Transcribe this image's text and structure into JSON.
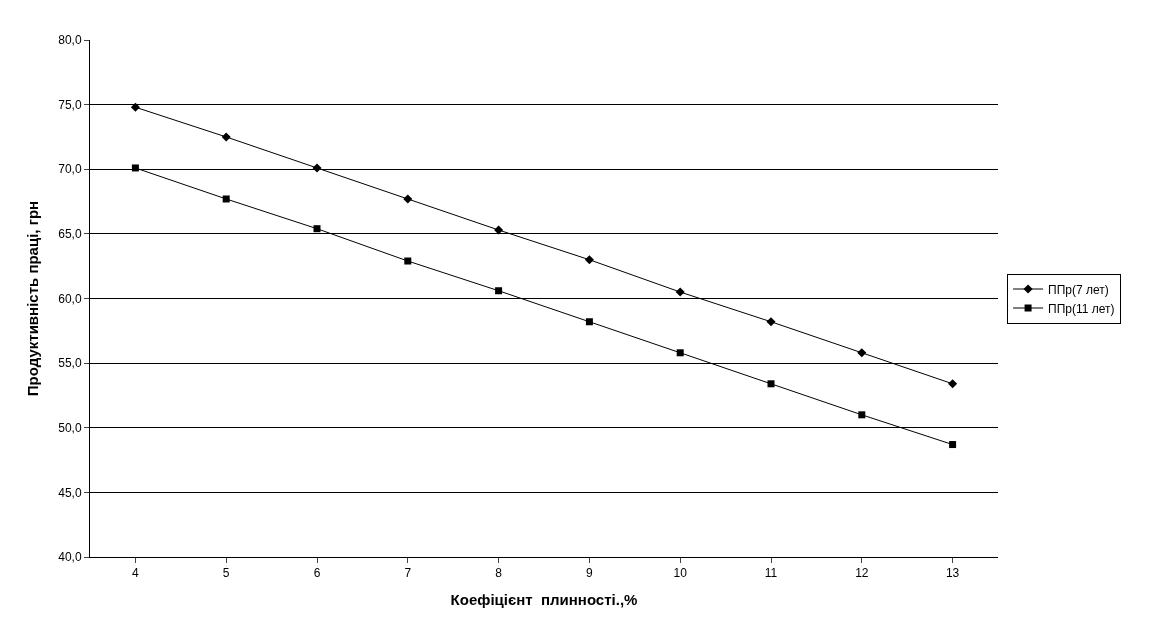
{
  "chart_data": {
    "type": "line",
    "xlabel": "Коефіцієнт  плинності.,%",
    "ylabel": "Продуктивність праці, грн",
    "categories": [
      "4",
      "5",
      "6",
      "7",
      "8",
      "9",
      "10",
      "11",
      "12",
      "13"
    ],
    "series": [
      {
        "name": "ППр(7 лет)",
        "color": "#000000",
        "marker": "diamond",
        "values": [
          74.8,
          72.5,
          70.1,
          67.7,
          65.3,
          63.0,
          60.5,
          58.2,
          55.8,
          53.4
        ]
      },
      {
        "name": "ППр(11 лет)",
        "color": "#000000",
        "marker": "square",
        "values": [
          70.1,
          67.7,
          65.4,
          62.9,
          60.6,
          58.2,
          55.8,
          53.4,
          51.0,
          48.7
        ]
      }
    ],
    "ylim": [
      40,
      80
    ],
    "yticks": [
      {
        "value": 40,
        "label": "40,0"
      },
      {
        "value": 45,
        "label": "45,0"
      },
      {
        "value": 50,
        "label": "50,0"
      },
      {
        "value": 55,
        "label": "55,0"
      },
      {
        "value": 60,
        "label": "60,0"
      },
      {
        "value": 65,
        "label": "65,0"
      },
      {
        "value": 70,
        "label": "70,0"
      },
      {
        "value": 75,
        "label": "75,0"
      },
      {
        "value": 80,
        "label": "80,0"
      }
    ],
    "grid": "y",
    "legend": "right",
    "line_style": "solid"
  }
}
